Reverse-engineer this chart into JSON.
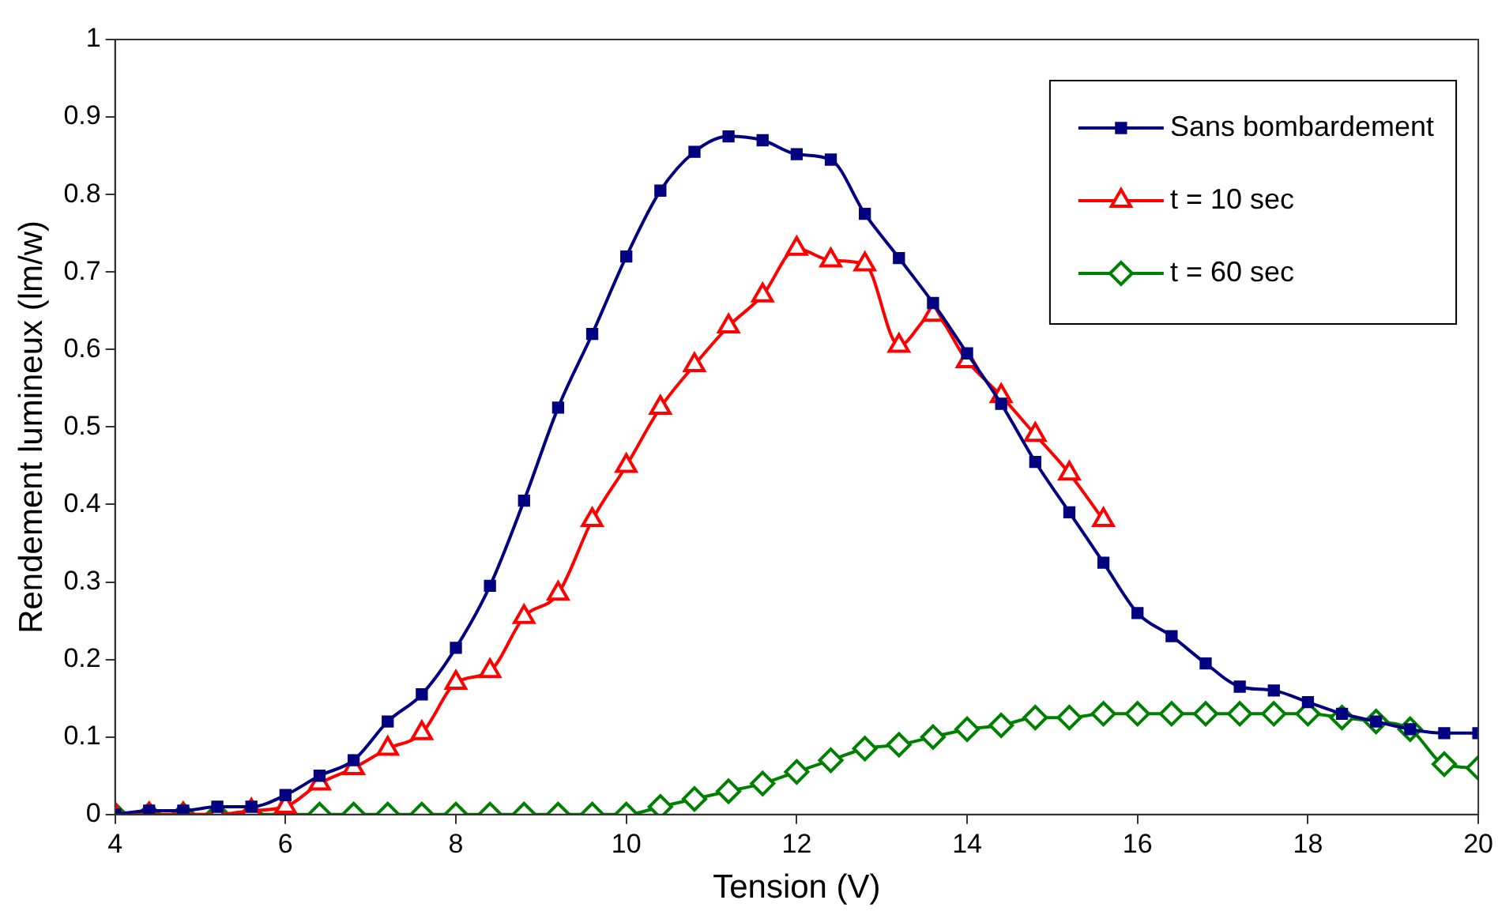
{
  "chart_data": {
    "type": "line",
    "xlabel": "Tension (V)",
    "ylabel": "Rendement lumineux (lm/w)",
    "x": [
      4,
      4.4,
      4.8,
      5.2,
      5.6,
      6,
      6.4,
      6.8,
      7.2,
      7.6,
      8,
      8.4,
      8.8,
      9.2,
      9.6,
      10,
      10.4,
      10.8,
      11.2,
      11.6,
      12,
      12.4,
      12.8,
      13.2,
      13.6,
      14,
      14.4,
      14.8,
      15.2,
      15.6,
      16,
      16.4,
      16.8,
      17.2,
      17.6,
      18,
      18.4,
      18.8,
      19.2,
      19.6,
      20
    ],
    "series": [
      {
        "name": "Sans bombardement",
        "color": "#000080",
        "marker": "square",
        "values": [
          0,
          0.005,
          0.005,
          0.01,
          0.01,
          0.025,
          0.05,
          0.07,
          0.12,
          0.155,
          0.215,
          0.295,
          0.405,
          0.525,
          0.62,
          0.72,
          0.805,
          0.855,
          0.875,
          0.87,
          0.852,
          0.845,
          0.775,
          0.718,
          0.66,
          0.595,
          0.53,
          0.455,
          0.39,
          0.325,
          0.26,
          0.23,
          0.195,
          0.165,
          0.16,
          0.145,
          0.13,
          0.12,
          0.11,
          0.105,
          0.105
        ]
      },
      {
        "name": "t = 10 sec",
        "color": "#ff0000",
        "marker": "triangle",
        "values": [
          0,
          0,
          0,
          0,
          0.005,
          0.01,
          0.04,
          0.06,
          0.085,
          0.105,
          0.17,
          0.185,
          0.255,
          0.285,
          0.38,
          0.45,
          0.525,
          0.58,
          0.63,
          0.67,
          0.73,
          0.715,
          0.71,
          0.605,
          0.645,
          0.585,
          0.54,
          0.49,
          0.44,
          0.38,
          null,
          null,
          null,
          null,
          null,
          null,
          null,
          null,
          null,
          null,
          null
        ]
      },
      {
        "name": "t = 60 sec",
        "color": "#008000",
        "marker": "diamond",
        "values": [
          0,
          0,
          0,
          0,
          0,
          0,
          0,
          0,
          0,
          0,
          0,
          0,
          0,
          0,
          0,
          0,
          0.01,
          0.02,
          0.03,
          0.04,
          0.055,
          0.07,
          0.085,
          0.09,
          0.1,
          0.11,
          0.115,
          0.125,
          0.125,
          0.13,
          0.13,
          0.13,
          0.13,
          0.13,
          0.13,
          0.13,
          0.125,
          0.12,
          0.11,
          0.065,
          0.06
        ]
      }
    ],
    "xlim": [
      4,
      20
    ],
    "xticks": [
      4,
      6,
      8,
      10,
      12,
      14,
      16,
      18,
      20
    ],
    "ylim": [
      0,
      1
    ],
    "yticks": [
      0,
      0.1,
      0.2,
      0.3,
      0.4,
      0.5,
      0.6,
      0.7,
      0.8,
      0.9,
      1
    ],
    "grid": false,
    "legend": "top right"
  }
}
